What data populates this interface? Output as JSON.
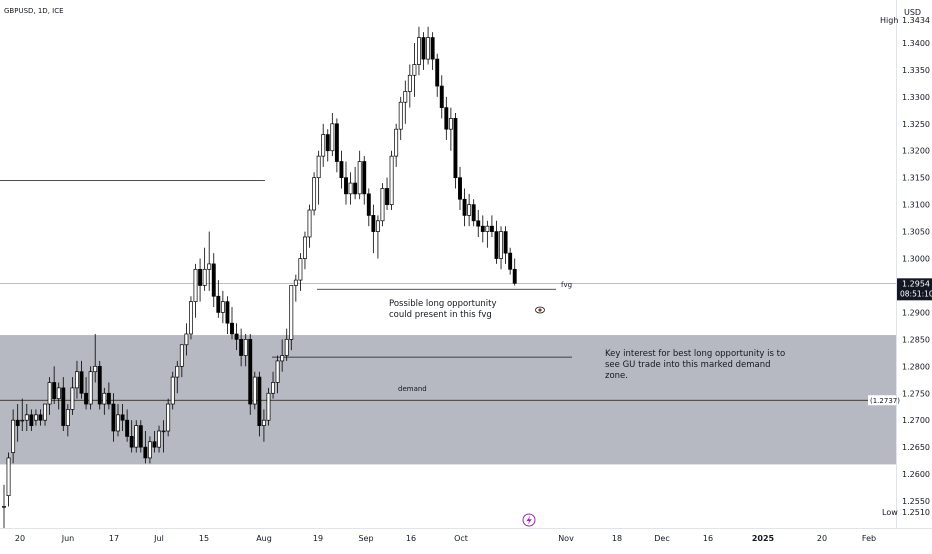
{
  "header": {
    "symbol_line": "GBPUSD, 1D, ICE"
  },
  "axis": {
    "currency": "USD",
    "high_label": "High",
    "low_label": "Low",
    "high_value": "1.3434",
    "low_value": "1.2510"
  },
  "price_badge": {
    "price": "1.2954",
    "countdown": "08:51:10"
  },
  "demand_badge": {
    "value": "(1.2737)"
  },
  "annotations": {
    "fvg": "fvg",
    "fvg_note_1": "Possible long opportunity",
    "fvg_note_2": "could present in this fvg",
    "demand_note_1": "Key interest for best long opportunity is to",
    "demand_note_2": "see GU trade into this marked demand",
    "demand_note_3": "zone.",
    "demand": "demand"
  },
  "colors": {
    "up": "#ffffff",
    "down": "#000000",
    "wick": "#000000",
    "zone": "#b2b5be",
    "demand_line": "#f0b232"
  },
  "chart_data": {
    "type": "candlestick",
    "title": "GBPUSD, 1D, ICE",
    "ylim": [
      1.25,
      1.345
    ],
    "y_ticks": [
      "1.2550",
      "1.2600",
      "1.2650",
      "1.2700",
      "1.2750",
      "1.2800",
      "1.2850",
      "1.2900",
      "1.2950",
      "1.3000",
      "1.3050",
      "1.3100",
      "1.3150",
      "1.3200",
      "1.3250",
      "1.3300",
      "1.3350",
      "1.3400"
    ],
    "x_ticks": [
      "20",
      "Jun",
      "17",
      "Jul",
      "15",
      "Aug",
      "19",
      "Sep",
      "16",
      "Oct",
      "Nov",
      "18",
      "Dec",
      "16",
      "2025",
      "20",
      "Feb"
    ],
    "zones": [
      {
        "label": "demand",
        "from": 1.2618,
        "to": 1.2858
      }
    ],
    "levels": [
      {
        "label": "",
        "value": 1.3145
      },
      {
        "label": "fvg",
        "value": 1.2943
      },
      {
        "label": "",
        "value": 1.2817
      },
      {
        "label": "demand",
        "value": 1.2737
      }
    ],
    "last_price": 1.2954,
    "candles": [
      [
        1.254,
        1.258,
        1.25,
        1.254
      ],
      [
        1.256,
        1.264,
        1.254,
        1.263
      ],
      [
        1.264,
        1.272,
        1.262,
        1.27
      ],
      [
        1.27,
        1.273,
        1.266,
        1.269
      ],
      [
        1.27,
        1.274,
        1.268,
        1.27
      ],
      [
        1.27,
        1.273,
        1.268,
        1.271
      ],
      [
        1.271,
        1.272,
        1.268,
        1.269
      ],
      [
        1.27,
        1.272,
        1.269,
        1.271
      ],
      [
        1.271,
        1.272,
        1.269,
        1.27
      ],
      [
        1.27,
        1.273,
        1.269,
        1.273
      ],
      [
        1.273,
        1.278,
        1.271,
        1.277
      ],
      [
        1.277,
        1.28,
        1.273,
        1.274
      ],
      [
        1.274,
        1.277,
        1.272,
        1.276
      ],
      [
        1.276,
        1.278,
        1.268,
        1.269
      ],
      [
        1.269,
        1.273,
        1.267,
        1.272
      ],
      [
        1.272,
        1.278,
        1.271,
        1.276
      ],
      [
        1.276,
        1.281,
        1.274,
        1.279
      ],
      [
        1.279,
        1.281,
        1.274,
        1.275
      ],
      [
        1.275,
        1.278,
        1.272,
        1.273
      ],
      [
        1.273,
        1.28,
        1.272,
        1.279
      ],
      [
        1.279,
        1.286,
        1.277,
        1.28
      ],
      [
        1.28,
        1.281,
        1.272,
        1.273
      ],
      [
        1.273,
        1.276,
        1.271,
        1.275
      ],
      [
        1.275,
        1.277,
        1.272,
        1.273
      ],
      [
        1.273,
        1.275,
        1.266,
        1.268
      ],
      [
        1.268,
        1.273,
        1.267,
        1.271
      ],
      [
        1.271,
        1.273,
        1.268,
        1.27
      ],
      [
        1.27,
        1.272,
        1.266,
        1.267
      ],
      [
        1.267,
        1.27,
        1.264,
        1.265
      ],
      [
        1.265,
        1.27,
        1.264,
        1.269
      ],
      [
        1.269,
        1.27,
        1.264,
        1.265
      ],
      [
        1.265,
        1.268,
        1.262,
        1.263
      ],
      [
        1.263,
        1.267,
        1.262,
        1.266
      ],
      [
        1.266,
        1.268,
        1.264,
        1.265
      ],
      [
        1.265,
        1.269,
        1.264,
        1.268
      ],
      [
        1.268,
        1.27,
        1.264,
        1.268
      ],
      [
        1.268,
        1.274,
        1.267,
        1.273
      ],
      [
        1.273,
        1.279,
        1.272,
        1.278
      ],
      [
        1.278,
        1.281,
        1.275,
        1.28
      ],
      [
        1.28,
        1.284,
        1.278,
        1.284
      ],
      [
        1.284,
        1.288,
        1.282,
        1.286
      ],
      [
        1.286,
        1.293,
        1.285,
        1.292
      ],
      [
        1.292,
        1.299,
        1.289,
        1.298
      ],
      [
        1.298,
        1.3,
        1.292,
        1.295
      ],
      [
        1.295,
        1.302,
        1.294,
        1.298
      ],
      [
        1.298,
        1.305,
        1.294,
        1.299
      ],
      [
        1.299,
        1.301,
        1.291,
        1.293
      ],
      [
        1.293,
        1.296,
        1.289,
        1.29
      ],
      [
        1.29,
        1.294,
        1.288,
        1.292
      ],
      [
        1.292,
        1.293,
        1.286,
        1.288
      ],
      [
        1.288,
        1.291,
        1.285,
        1.286
      ],
      [
        1.286,
        1.288,
        1.283,
        1.285
      ],
      [
        1.285,
        1.287,
        1.28,
        1.282
      ],
      [
        1.282,
        1.286,
        1.28,
        1.285
      ],
      [
        1.285,
        1.286,
        1.271,
        1.273
      ],
      [
        1.273,
        1.279,
        1.272,
        1.278
      ],
      [
        1.278,
        1.279,
        1.267,
        1.269
      ],
      [
        1.269,
        1.272,
        1.266,
        1.27
      ],
      [
        1.27,
        1.276,
        1.269,
        1.275
      ],
      [
        1.275,
        1.279,
        1.274,
        1.277
      ],
      [
        1.277,
        1.282,
        1.275,
        1.281
      ],
      [
        1.281,
        1.285,
        1.279,
        1.282
      ],
      [
        1.282,
        1.287,
        1.281,
        1.285
      ],
      [
        1.285,
        1.295,
        1.283,
        1.295
      ],
      [
        1.295,
        1.297,
        1.292,
        1.296
      ],
      [
        1.296,
        1.301,
        1.294,
        1.3
      ],
      [
        1.3,
        1.305,
        1.298,
        1.304
      ],
      [
        1.304,
        1.31,
        1.302,
        1.309
      ],
      [
        1.309,
        1.316,
        1.308,
        1.315
      ],
      [
        1.315,
        1.32,
        1.31,
        1.319
      ],
      [
        1.319,
        1.325,
        1.317,
        1.323
      ],
      [
        1.323,
        1.324,
        1.318,
        1.32
      ],
      [
        1.32,
        1.327,
        1.319,
        1.325
      ],
      [
        1.325,
        1.326,
        1.316,
        1.318
      ],
      [
        1.318,
        1.32,
        1.313,
        1.315
      ],
      [
        1.315,
        1.318,
        1.31,
        1.312
      ],
      [
        1.312,
        1.316,
        1.31,
        1.314
      ],
      [
        1.314,
        1.317,
        1.311,
        1.312
      ],
      [
        1.312,
        1.32,
        1.311,
        1.318
      ],
      [
        1.318,
        1.319,
        1.31,
        1.312
      ],
      [
        1.312,
        1.313,
        1.306,
        1.308
      ],
      [
        1.308,
        1.31,
        1.301,
        1.305
      ],
      [
        1.305,
        1.308,
        1.3,
        1.307
      ],
      [
        1.307,
        1.314,
        1.306,
        1.313
      ],
      [
        1.313,
        1.315,
        1.309,
        1.31
      ],
      [
        1.31,
        1.32,
        1.309,
        1.319
      ],
      [
        1.319,
        1.325,
        1.317,
        1.324
      ],
      [
        1.324,
        1.33,
        1.322,
        1.329
      ],
      [
        1.329,
        1.333,
        1.325,
        1.331
      ],
      [
        1.331,
        1.336,
        1.328,
        1.334
      ],
      [
        1.334,
        1.34,
        1.33,
        1.336
      ],
      [
        1.336,
        1.343,
        1.334,
        1.341
      ],
      [
        1.341,
        1.342,
        1.335,
        1.337
      ],
      [
        1.337,
        1.343,
        1.336,
        1.341
      ],
      [
        1.341,
        1.342,
        1.335,
        1.337
      ],
      [
        1.337,
        1.338,
        1.33,
        1.332
      ],
      [
        1.332,
        1.334,
        1.326,
        1.328
      ],
      [
        1.328,
        1.33,
        1.322,
        1.324
      ],
      [
        1.324,
        1.328,
        1.32,
        1.326
      ],
      [
        1.326,
        1.327,
        1.313,
        1.315
      ],
      [
        1.315,
        1.317,
        1.309,
        1.311
      ],
      [
        1.311,
        1.313,
        1.306,
        1.308
      ],
      [
        1.308,
        1.312,
        1.306,
        1.31
      ],
      [
        1.31,
        1.311,
        1.306,
        1.307
      ],
      [
        1.307,
        1.309,
        1.304,
        1.306
      ],
      [
        1.306,
        1.308,
        1.303,
        1.305
      ],
      [
        1.305,
        1.307,
        1.302,
        1.306
      ],
      [
        1.306,
        1.308,
        1.304,
        1.305
      ],
      [
        1.305,
        1.307,
        1.299,
        1.3
      ],
      [
        1.3,
        1.306,
        1.298,
        1.305
      ],
      [
        1.305,
        1.306,
        1.299,
        1.301
      ],
      [
        1.301,
        1.302,
        1.297,
        1.298
      ],
      [
        1.298,
        1.3,
        1.295,
        1.2954
      ]
    ]
  }
}
